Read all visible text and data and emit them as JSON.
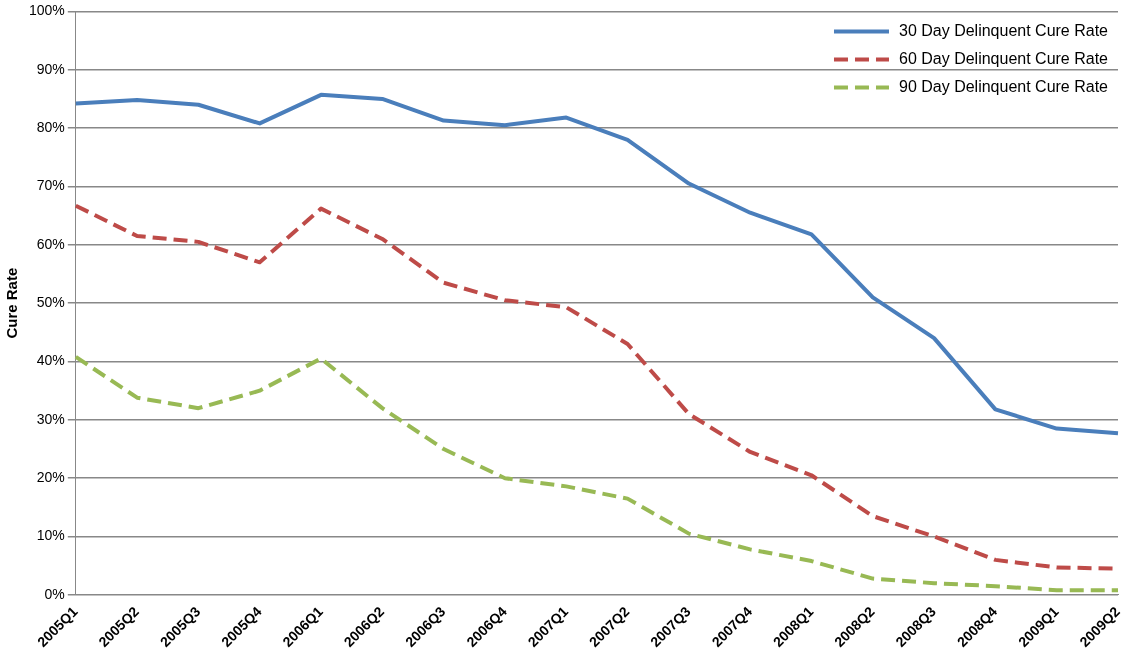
{
  "chart_data": {
    "type": "line",
    "ylabel": "Cure Rate",
    "categories": [
      "2005Q1",
      "2005Q2",
      "2005Q3",
      "2005Q4",
      "2006Q1",
      "2006Q2",
      "2006Q3",
      "2006Q4",
      "2007Q1",
      "2007Q2",
      "2007Q3",
      "2007Q4",
      "2008Q1",
      "2008Q2",
      "2008Q3",
      "2008Q4",
      "2009Q1",
      "2009Q2"
    ],
    "series": [
      {
        "name": "30 Day Delinquent Cure Rate",
        "color": "#4a7ebb",
        "line_style": "solid",
        "values": [
          84.2,
          84.8,
          84,
          80.8,
          85.7,
          85,
          81.3,
          80.5,
          81.8,
          78,
          70.5,
          65.5,
          61.8,
          51,
          44,
          31.8,
          28.5,
          27.7
        ]
      },
      {
        "name": "60 Day Delinquent Cure Rate",
        "color": "#be4b48",
        "line_style": "dashed",
        "values": [
          66.7,
          61.5,
          60.5,
          57,
          66.2,
          61,
          53.5,
          50.5,
          49.3,
          43,
          31,
          24.5,
          20.5,
          13.5,
          10,
          6,
          4.7,
          4.5
        ]
      },
      {
        "name": "90 Day Delinquent Cure Rate",
        "color": "#98b954",
        "line_style": "dashed",
        "values": [
          40.8,
          33.8,
          32,
          35,
          40.5,
          32,
          25,
          20,
          18.6,
          16.5,
          10.5,
          7.8,
          5.8,
          2.8,
          2,
          1.5,
          0.8,
          0.8
        ]
      }
    ],
    "ylim": [
      0,
      100
    ],
    "yticks": [
      {
        "value": 0,
        "label": "0%"
      },
      {
        "value": 10,
        "label": "10%"
      },
      {
        "value": 20,
        "label": "20%"
      },
      {
        "value": 30,
        "label": "30%"
      },
      {
        "value": 40,
        "label": "40%"
      },
      {
        "value": 50,
        "label": "50%"
      },
      {
        "value": 60,
        "label": "60%"
      },
      {
        "value": 70,
        "label": "70%"
      },
      {
        "value": 80,
        "label": "80%"
      },
      {
        "value": 90,
        "label": "90%"
      },
      {
        "value": 100,
        "label": "100%"
      }
    ],
    "grid": "y",
    "legend": "top right",
    "marker": "none"
  }
}
